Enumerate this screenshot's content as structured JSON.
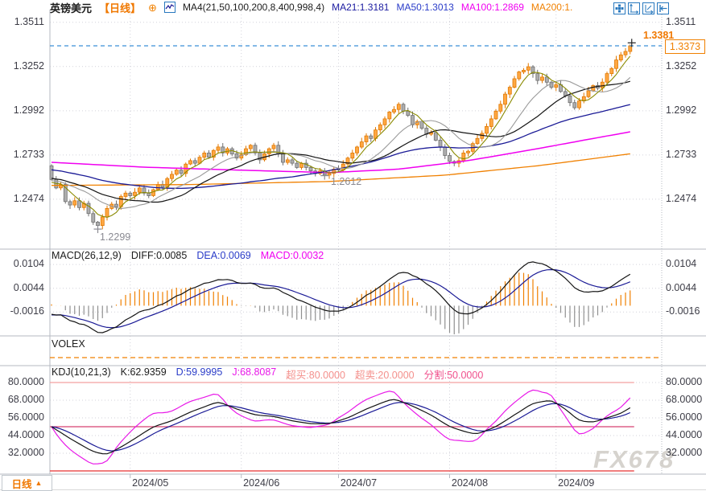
{
  "header": {
    "symbol": "英镑美元",
    "period": "【日线】",
    "plus_glyph": "⊕",
    "ma_formula": "MA4(21,50,100,200,8,400,998,4)",
    "ma_values": [
      {
        "label": "MA21:1.3181",
        "color": "#1a1aa0"
      },
      {
        "label": "MA50:1.3013",
        "color": "#2a3cc8"
      },
      {
        "label": "MA100:1.2869",
        "color": "#f000f0"
      },
      {
        "label": "MA200:1.",
        "color": "#f08000"
      }
    ]
  },
  "toolbar": {
    "icons": [
      "pan-icon",
      "scale-y-axis-icon",
      "scale-x-axis-icon",
      "go-to-latest-icon"
    ]
  },
  "main_axis": {
    "left": [
      "1.3511",
      "1.3252",
      "1.2992",
      "1.2733",
      "1.2474"
    ],
    "right": [
      "1.3511",
      "1.3252",
      "1.2992",
      "1.2733",
      "1.2474"
    ]
  },
  "price_marker": {
    "current": "1.3373",
    "high": "1.3381",
    "low_april": "1.2299",
    "low_june": "1.2612"
  },
  "macd_pane": {
    "title": "MACD(26,12,9)",
    "diff": "DIFF:0.0085",
    "dea": "DEA:0.0069",
    "macd": "MACD:0.0032",
    "axis": [
      "0.0104",
      "0.0044",
      "-0.0016"
    ]
  },
  "volex_pane": {
    "title": "VOLEX"
  },
  "kdj_pane": {
    "title": "KDJ(10,21,3)",
    "k": "K:62.9359",
    "d": "D:59.9995",
    "j": "J:68.8087",
    "overbought": "超买:80.0000",
    "oversold": "超卖:20.0000",
    "split": "分割:50.0000",
    "axis": [
      "80.0000",
      "68.0000",
      "56.0000",
      "44.0000",
      "32.0000"
    ]
  },
  "bottom_bar": {
    "tab_label": "日线",
    "tab_arrow": "▲",
    "months": [
      "2024/05",
      "2024/06",
      "2024/07",
      "2024/08",
      "2024/09"
    ]
  },
  "watermark": "FX678",
  "colors": {
    "up": "#ffa742",
    "up_border": "#e07800",
    "down": "#aeaeae",
    "down_border": "#6f6f6f",
    "ma_olive": "#8a8a00",
    "ma_gray": "#9a9a9a",
    "ma_black": "#141414",
    "ma_navy": "#1a1a96",
    "ma_magenta": "#f000f0",
    "ma_orange": "#f08000",
    "price_line": "#3a8fd8",
    "hist_pos": "#f08000",
    "hist_neg": "#8f8f8f",
    "kdj_k": "#141414",
    "kdj_d": "#1a1a96",
    "kdj_j": "#e818e8",
    "overbought_line": "#f4a0a0",
    "split_line": "#d84070",
    "oversold_line": "#e83232",
    "volex_line": "#f08000",
    "grid": "#d2d2da",
    "border": "#b6bac2",
    "axis_text": "#3c3c46",
    "marker_gray": "#8a8a92",
    "cross": "#222222"
  },
  "chart_data": {
    "type": "candlestick",
    "title": "英镑美元 (GBP/USD) 日线",
    "legend": [
      "MA21",
      "MA50",
      "MA100",
      "MA200",
      "MACD(26,12,9)",
      "VOLEX",
      "KDJ(10,21,3)"
    ],
    "price_ticks": [
      1.3511,
      1.3252,
      1.2992,
      1.2733,
      1.2474
    ],
    "month_start_indices": [
      17,
      41,
      62,
      86,
      109
    ],
    "month_labels": [
      "2024/05",
      "2024/06",
      "2024/07",
      "2024/08",
      "2024/09"
    ],
    "first_open": 1.267,
    "open_rule": "open[i] = close[i-1]",
    "closes": [
      1.259,
      1.254,
      1.256,
      1.246,
      1.244,
      1.2465,
      1.2425,
      1.245,
      1.239,
      1.234,
      1.232,
      1.237,
      1.242,
      1.2445,
      1.243,
      1.249,
      1.251,
      1.2495,
      1.2515,
      1.254,
      1.251,
      1.2495,
      1.253,
      1.256,
      1.2545,
      1.2595,
      1.262,
      1.2645,
      1.2625,
      1.268,
      1.27,
      1.2685,
      1.272,
      1.2745,
      1.272,
      1.276,
      1.278,
      1.2745,
      1.277,
      1.274,
      1.2715,
      1.2735,
      1.277,
      1.279,
      1.2745,
      1.2705,
      1.274,
      1.277,
      1.279,
      1.274,
      1.269,
      1.2705,
      1.2685,
      1.266,
      1.2685,
      1.266,
      1.264,
      1.2625,
      1.264,
      1.2615,
      1.2625,
      1.265,
      1.2645,
      1.268,
      1.2715,
      1.2745,
      1.278,
      1.281,
      1.2845,
      1.283,
      1.288,
      1.291,
      1.2945,
      1.2985,
      1.3,
      1.303,
      1.299,
      1.2965,
      1.291,
      1.293,
      1.289,
      1.2855,
      1.2865,
      1.282,
      1.278,
      1.273,
      1.2695,
      1.2685,
      1.27,
      1.2745,
      1.2755,
      1.28,
      1.283,
      1.286,
      1.29,
      1.2945,
      1.299,
      1.303,
      1.309,
      1.313,
      1.318,
      1.322,
      1.323,
      1.325,
      1.321,
      1.317,
      1.319,
      1.316,
      1.313,
      1.3145,
      1.3105,
      1.308,
      1.304,
      1.301,
      1.305,
      1.3075,
      1.311,
      1.314,
      1.3125,
      1.316,
      1.321,
      1.324,
      1.329,
      1.332,
      1.334,
      1.3373
    ],
    "key_points": {
      "low_1": {
        "index": 10,
        "price": 1.2299
      },
      "low_2": {
        "index": 59,
        "price": 1.2612
      },
      "high": {
        "index": 125,
        "price": 1.3381
      },
      "last_close": 1.3373
    },
    "overlays": {
      "ma_windows": {
        "fast_olive": 5,
        "mid_gray": 13,
        "ma21_black": 21,
        "ma50_navy": 50
      },
      "ma100_anchors": [
        [
          0,
          1.269
        ],
        [
          20,
          1.2662
        ],
        [
          40,
          1.2645
        ],
        [
          60,
          1.263
        ],
        [
          75,
          1.265
        ],
        [
          90,
          1.27
        ],
        [
          105,
          1.277
        ],
        [
          115,
          1.282
        ],
        [
          125,
          1.2869
        ]
      ],
      "ma200_anchors": [
        [
          0,
          1.2555
        ],
        [
          30,
          1.256
        ],
        [
          60,
          1.2578
        ],
        [
          85,
          1.2615
        ],
        [
          105,
          1.267
        ],
        [
          125,
          1.274
        ]
      ]
    },
    "macd": {
      "params": [
        26,
        12,
        9
      ],
      "final": {
        "diff": 0.0085,
        "dea": 0.0069,
        "macd": 0.0032
      },
      "y_ticks": [
        0.0104,
        0.0044,
        -0.0016
      ]
    },
    "kdj": {
      "params": [
        10,
        21,
        3
      ],
      "final": {
        "k": 62.9359,
        "d": 59.9995,
        "j": 68.8087
      },
      "ref_lines": {
        "overbought": 80,
        "oversold": 20,
        "split": 50
      },
      "y_ticks": [
        80,
        68,
        56,
        44,
        32
      ],
      "k_anchors": [
        [
          0,
          50
        ],
        [
          4,
          42
        ],
        [
          9,
          33
        ],
        [
          12,
          31
        ],
        [
          16,
          38
        ],
        [
          22,
          50
        ],
        [
          26,
          54
        ],
        [
          30,
          60
        ],
        [
          36,
          67
        ],
        [
          40,
          62
        ],
        [
          44,
          58
        ],
        [
          48,
          57
        ],
        [
          52,
          54
        ],
        [
          56,
          52
        ],
        [
          60,
          52
        ],
        [
          64,
          56
        ],
        [
          68,
          62
        ],
        [
          72,
          67
        ],
        [
          74,
          69
        ],
        [
          78,
          64
        ],
        [
          82,
          58
        ],
        [
          86,
          50
        ],
        [
          90,
          46
        ],
        [
          92,
          45
        ],
        [
          96,
          50
        ],
        [
          100,
          58
        ],
        [
          104,
          66
        ],
        [
          108,
          68
        ],
        [
          111,
          62
        ],
        [
          114,
          54
        ],
        [
          117,
          53
        ],
        [
          120,
          56
        ],
        [
          123,
          59
        ],
        [
          125,
          62.9
        ]
      ]
    }
  }
}
